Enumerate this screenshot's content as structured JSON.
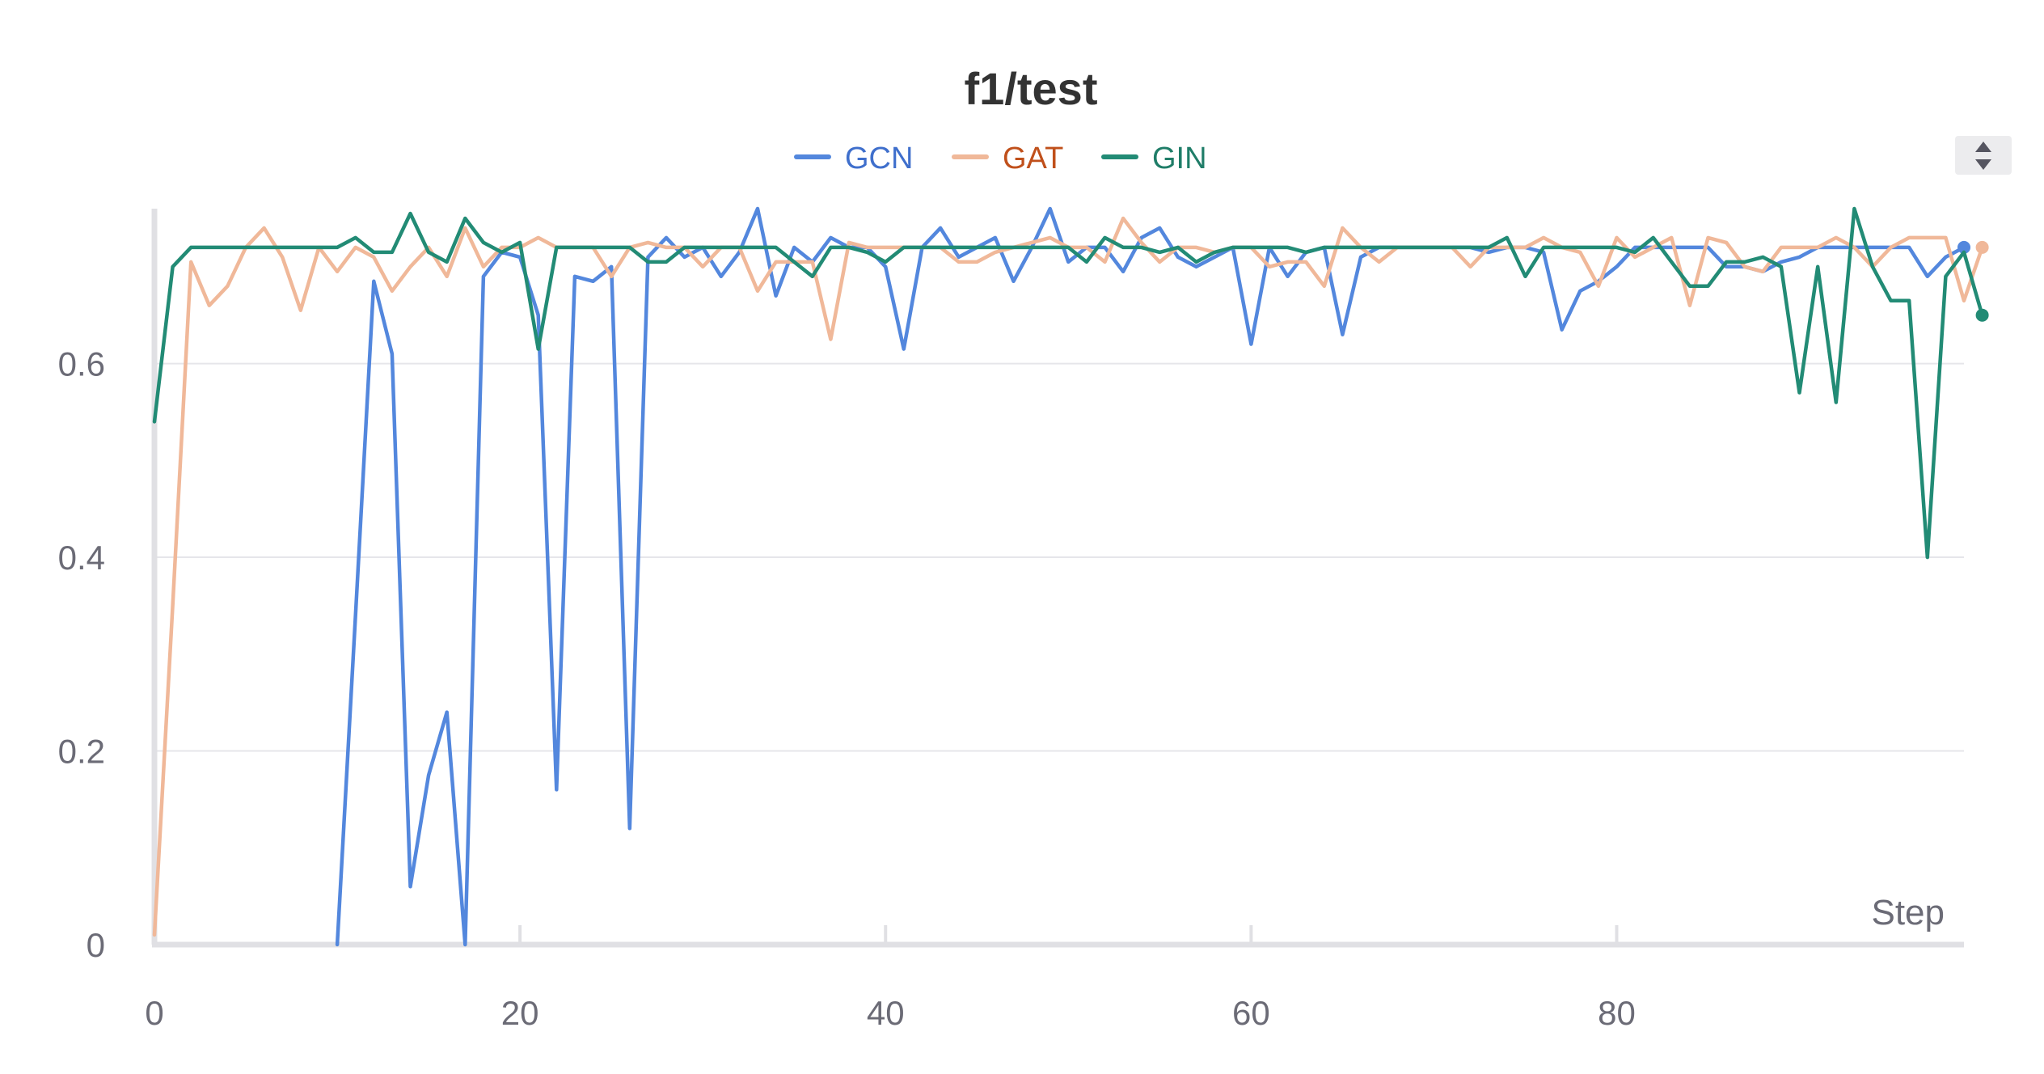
{
  "chart_data": {
    "type": "line",
    "title": "f1/test",
    "xlabel": "Step",
    "ylabel": "",
    "xlim": [
      0,
      99
    ],
    "ylim": [
      0,
      0.76
    ],
    "x_ticks": [
      0,
      20,
      40,
      60,
      80
    ],
    "x_tick_labels": [
      "0",
      "20",
      "40",
      "60",
      "80"
    ],
    "y_ticks": [
      0,
      0.2,
      0.4,
      0.6
    ],
    "y_tick_labels": [
      "0",
      "0.2",
      "0.4",
      "0.6"
    ],
    "grid": "horizontal",
    "legend": "top-center",
    "series": [
      {
        "name": "GCN",
        "color": "#5387DD",
        "values": [
          null,
          null,
          null,
          null,
          null,
          null,
          null,
          null,
          null,
          null,
          0,
          0.34,
          0.685,
          0.61,
          0.06,
          0.175,
          0.24,
          0,
          0.69,
          0.715,
          0.71,
          0.65,
          0.16,
          0.69,
          0.685,
          0.7,
          0.12,
          0.71,
          0.73,
          0.71,
          0.72,
          0.69,
          0.715,
          0.76,
          0.67,
          0.72,
          0.705,
          0.73,
          0.72,
          0.72,
          0.7,
          0.615,
          0.72,
          0.74,
          0.71,
          0.72,
          0.73,
          0.685,
          0.72,
          0.76,
          0.705,
          0.72,
          0.72,
          0.695,
          0.73,
          0.74,
          0.71,
          0.7,
          0.71,
          0.72,
          0.62,
          0.72,
          0.69,
          0.715,
          0.72,
          0.63,
          0.71,
          0.72,
          0.72,
          0.72,
          0.72,
          0.72,
          0.72,
          0.715,
          0.72,
          0.72,
          0.715,
          0.635,
          0.675,
          0.685,
          0.7,
          0.72,
          0.72,
          0.72,
          0.72,
          0.72,
          0.7,
          0.7,
          0.695,
          0.705,
          0.71,
          0.72,
          0.72,
          0.72,
          0.72,
          0.72,
          0.72,
          0.69,
          0.71,
          0.72
        ]
      },
      {
        "name": "GAT",
        "color": "#F0B899",
        "values": [
          0.01,
          0.35,
          0.705,
          0.66,
          0.68,
          0.72,
          0.74,
          0.71,
          0.655,
          0.72,
          0.695,
          0.72,
          0.71,
          0.675,
          0.7,
          0.72,
          0.69,
          0.74,
          0.7,
          0.72,
          0.72,
          0.73,
          0.72,
          0.72,
          0.72,
          0.69,
          0.72,
          0.725,
          0.72,
          0.72,
          0.7,
          0.72,
          0.72,
          0.675,
          0.705,
          0.705,
          0.705,
          0.625,
          0.725,
          0.72,
          0.72,
          0.72,
          0.72,
          0.72,
          0.705,
          0.705,
          0.715,
          0.72,
          0.725,
          0.73,
          0.72,
          0.72,
          0.705,
          0.75,
          0.725,
          0.705,
          0.72,
          0.72,
          0.715,
          0.72,
          0.72,
          0.7,
          0.705,
          0.705,
          0.68,
          0.74,
          0.72,
          0.705,
          0.72,
          0.72,
          0.72,
          0.72,
          0.7,
          0.72,
          0.72,
          0.72,
          0.73,
          0.72,
          0.715,
          0.68,
          0.73,
          0.71,
          0.72,
          0.73,
          0.66,
          0.73,
          0.725,
          0.7,
          0.695,
          0.72,
          0.72,
          0.72,
          0.73,
          0.72,
          0.7,
          0.72,
          0.73,
          0.73,
          0.73,
          0.665,
          0.72
        ]
      },
      {
        "name": "GIN",
        "color": "#228B75",
        "values": [
          0.54,
          0.7,
          0.72,
          0.72,
          0.72,
          0.72,
          0.72,
          0.72,
          0.72,
          0.72,
          0.72,
          0.73,
          0.715,
          0.715,
          0.755,
          0.715,
          0.705,
          0.75,
          0.725,
          0.715,
          0.725,
          0.615,
          0.72,
          0.72,
          0.72,
          0.72,
          0.72,
          0.705,
          0.705,
          0.72,
          0.72,
          0.72,
          0.72,
          0.72,
          0.72,
          0.705,
          0.69,
          0.72,
          0.72,
          0.715,
          0.705,
          0.72,
          0.72,
          0.72,
          0.72,
          0.72,
          0.72,
          0.72,
          0.72,
          0.72,
          0.72,
          0.705,
          0.73,
          0.72,
          0.72,
          0.715,
          0.72,
          0.705,
          0.715,
          0.72,
          0.72,
          0.72,
          0.72,
          0.715,
          0.72,
          0.72,
          0.72,
          0.72,
          0.72,
          0.72,
          0.72,
          0.72,
          0.72,
          0.72,
          0.73,
          0.69,
          0.72,
          0.72,
          0.72,
          0.72,
          0.72,
          0.715,
          0.73,
          0.705,
          0.68,
          0.68,
          0.705,
          0.705,
          0.71,
          0.7,
          0.57,
          0.7,
          0.56,
          0.76,
          0.7,
          0.665,
          0.665,
          0.4,
          0.69,
          0.715,
          0.65
        ]
      }
    ]
  },
  "controls": {
    "sort_icon": "up-down-arrows-icon"
  }
}
